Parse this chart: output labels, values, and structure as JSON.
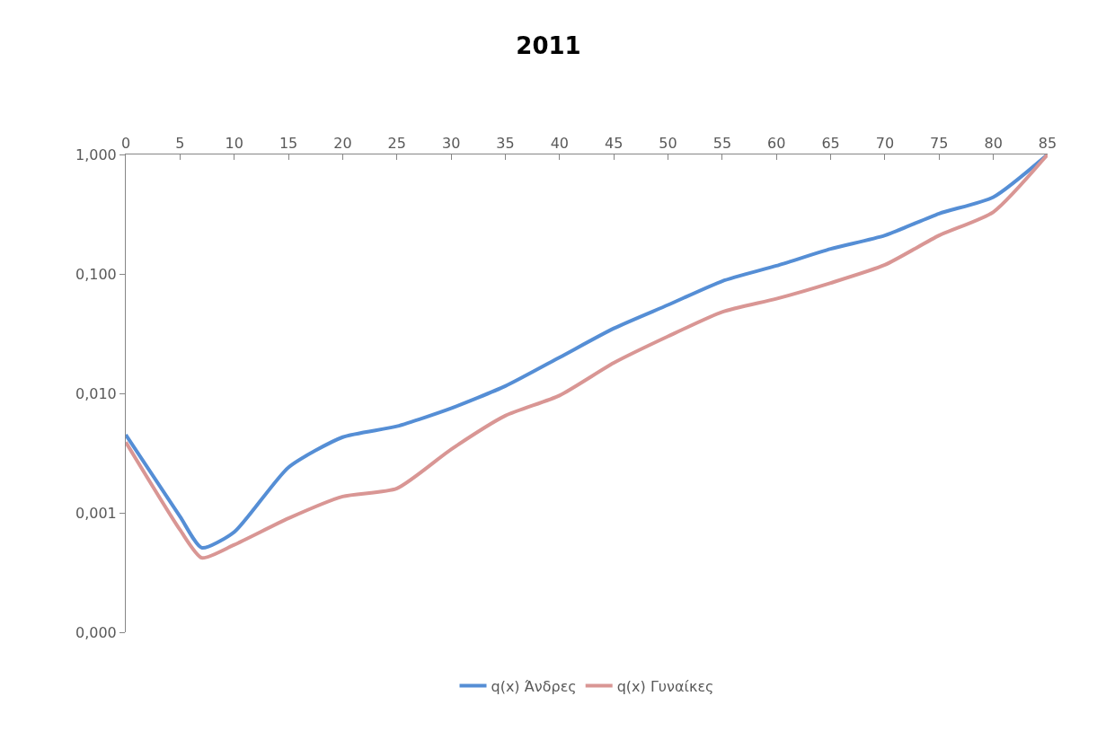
{
  "chart_data": {
    "type": "line",
    "title": "2011",
    "x": [
      0,
      5,
      7,
      10,
      15,
      20,
      25,
      30,
      35,
      40,
      45,
      50,
      55,
      60,
      65,
      70,
      75,
      80,
      85
    ],
    "series": [
      {
        "name": "q(x) Άνδρες",
        "color": "#558ed5",
        "values": [
          0.0045,
          0.00093,
          0.00051,
          0.00069,
          0.0024,
          0.0043,
          0.0053,
          0.0075,
          0.0115,
          0.02,
          0.035,
          0.055,
          0.087,
          0.117,
          0.162,
          0.21,
          0.32,
          0.44,
          1.0
        ]
      },
      {
        "name": "q(x) Γυναίκες",
        "color": "#d99694",
        "values": [
          0.0039,
          0.00072,
          0.00042,
          0.00054,
          0.0009,
          0.00137,
          0.0016,
          0.0034,
          0.0065,
          0.0096,
          0.018,
          0.03,
          0.048,
          0.062,
          0.084,
          0.119,
          0.21,
          0.33,
          1.0
        ]
      }
    ],
    "log": "y",
    "xlim": [
      0,
      85
    ],
    "xticks": [
      0,
      5,
      10,
      15,
      20,
      25,
      30,
      35,
      40,
      45,
      50,
      55,
      60,
      65,
      70,
      75,
      80,
      85
    ],
    "ylim": [
      0.0001,
      1
    ],
    "yticks": [
      {
        "value": 0.0001,
        "label": "0,000"
      },
      {
        "value": 0.001,
        "label": "0,001"
      },
      {
        "value": 0.01,
        "label": "0,010"
      },
      {
        "value": 0.1,
        "label": "0,100"
      },
      {
        "value": 1,
        "label": "1,000"
      }
    ],
    "grid": false,
    "legend": "bottom",
    "marker": "none",
    "line_style": "solid"
  }
}
